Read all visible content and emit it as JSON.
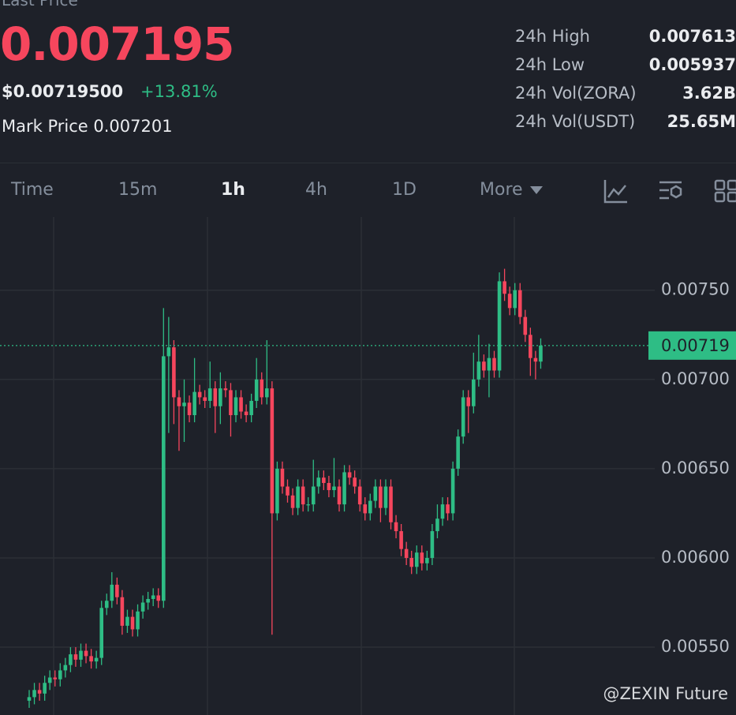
{
  "header": {
    "label": "Last Price",
    "price": "0.007195",
    "usd_price": "$0.00719500",
    "change": "+13.81%",
    "mark_label": "Mark Price",
    "mark_price": "0.007201"
  },
  "stats": [
    {
      "label": "24h High",
      "value": "0.007613"
    },
    {
      "label": "24h Low",
      "value": "0.005937"
    },
    {
      "label": "24h Vol(ZORA)",
      "value": "3.62B"
    },
    {
      "label": "24h Vol(USDT)",
      "value": "25.65M"
    }
  ],
  "tabs": [
    "Time",
    "15m",
    "1h",
    "4h",
    "1D",
    "More"
  ],
  "active_tab": "1h",
  "watermark": "@ZEXIN Future",
  "chart_data": {
    "type": "candlestick",
    "up_color": "#2ebd85",
    "down_color": "#f6465d",
    "ylim": [
      0.00512,
      0.00791
    ],
    "yticks": [
      {
        "value": 0.0055,
        "label": "0.00550"
      },
      {
        "value": 0.006,
        "label": "0.00600"
      },
      {
        "value": 0.0065,
        "label": "0.00650"
      },
      {
        "value": 0.007,
        "label": "0.00700"
      },
      {
        "value": 0.0075,
        "label": "0.00750"
      }
    ],
    "grid": true,
    "current_price": {
      "value": 0.00719,
      "label": "0.00719"
    },
    "open": [
      0.0052,
      0.00522,
      0.00526,
      0.00524,
      0.0053,
      0.00533,
      0.00532,
      0.00537,
      0.0054,
      0.00546,
      0.00543,
      0.00548,
      0.00545,
      0.00542,
      0.00544,
      0.00572,
      0.00576,
      0.00585,
      0.00578,
      0.00562,
      0.00567,
      0.0056,
      0.0057,
      0.00575,
      0.00577,
      0.00579,
      0.00576,
      0.00713,
      0.00718,
      0.0069,
      0.00685,
      0.00687,
      0.0068,
      0.00693,
      0.0069,
      0.00688,
      0.00695,
      0.00685,
      0.00695,
      0.00694,
      0.0068,
      0.0069,
      0.00682,
      0.0068,
      0.00688,
      0.007,
      0.0069,
      0.00695,
      0.00625,
      0.0065,
      0.0064,
      0.00635,
      0.00628,
      0.0064,
      0.0063,
      0.0063,
      0.0064,
      0.00645,
      0.00642,
      0.00638,
      0.0064,
      0.0063,
      0.00648,
      0.00645,
      0.0064,
      0.0063,
      0.00625,
      0.00632,
      0.0064,
      0.00628,
      0.0064,
      0.0062,
      0.00615,
      0.00605,
      0.006,
      0.00595,
      0.00603,
      0.00597,
      0.006,
      0.00615,
      0.00622,
      0.0063,
      0.00625,
      0.0065,
      0.00668,
      0.0069,
      0.00685,
      0.007,
      0.0071,
      0.00705,
      0.00712,
      0.00705,
      0.00755,
      0.00748,
      0.0074,
      0.0075,
      0.00735,
      0.00725,
      0.00712,
      0.0071
    ],
    "high": [
      0.00526,
      0.0053,
      0.0053,
      0.00534,
      0.00537,
      0.00537,
      0.00541,
      0.00544,
      0.0055,
      0.0055,
      0.00552,
      0.00552,
      0.00549,
      0.00548,
      0.00576,
      0.0058,
      0.00592,
      0.00589,
      0.00582,
      0.00571,
      0.00571,
      0.00574,
      0.00579,
      0.00581,
      0.00583,
      0.00583,
      0.0074,
      0.00735,
      0.00722,
      0.00694,
      0.007,
      0.00691,
      0.00712,
      0.00697,
      0.00694,
      0.0071,
      0.00699,
      0.00704,
      0.00699,
      0.00698,
      0.00694,
      0.00694,
      0.00686,
      0.00692,
      0.00712,
      0.00704,
      0.00722,
      0.00699,
      0.00654,
      0.00654,
      0.00644,
      0.00639,
      0.00644,
      0.00644,
      0.00634,
      0.00655,
      0.00649,
      0.00649,
      0.00646,
      0.00656,
      0.00644,
      0.00652,
      0.00652,
      0.00649,
      0.00644,
      0.00634,
      0.00636,
      0.00644,
      0.00644,
      0.00644,
      0.00644,
      0.00624,
      0.00619,
      0.00609,
      0.00604,
      0.00607,
      0.00607,
      0.00604,
      0.00619,
      0.0063,
      0.00634,
      0.00634,
      0.00654,
      0.00672,
      0.00694,
      0.00694,
      0.00715,
      0.00725,
      0.00714,
      0.0072,
      0.00716,
      0.0076,
      0.00762,
      0.00752,
      0.00754,
      0.00754,
      0.00739,
      0.00729,
      0.00716,
      0.00723
    ],
    "low": [
      0.00516,
      0.00518,
      0.0052,
      0.0052,
      0.00526,
      0.00528,
      0.00528,
      0.00533,
      0.00536,
      0.00539,
      0.00539,
      0.00541,
      0.00538,
      0.00538,
      0.0054,
      0.00568,
      0.00572,
      0.00574,
      0.00557,
      0.00558,
      0.00556,
      0.00556,
      0.00566,
      0.00571,
      0.00573,
      0.00572,
      0.00572,
      0.0067,
      0.00675,
      0.0066,
      0.00665,
      0.00676,
      0.00676,
      0.00686,
      0.00684,
      0.00684,
      0.0067,
      0.00675,
      0.0069,
      0.00668,
      0.00676,
      0.00678,
      0.00676,
      0.00676,
      0.00684,
      0.00686,
      0.00686,
      0.00557,
      0.00621,
      0.00636,
      0.00631,
      0.00624,
      0.00624,
      0.00626,
      0.00626,
      0.00626,
      0.00636,
      0.00638,
      0.00634,
      0.00634,
      0.00626,
      0.00626,
      0.00641,
      0.00636,
      0.00626,
      0.00621,
      0.00621,
      0.00628,
      0.0062,
      0.00624,
      0.00616,
      0.00611,
      0.00601,
      0.00596,
      0.00591,
      0.00591,
      0.00593,
      0.00593,
      0.00596,
      0.00611,
      0.00618,
      0.00621,
      0.00621,
      0.00646,
      0.00664,
      0.0067,
      0.00681,
      0.00696,
      0.00701,
      0.0069,
      0.00701,
      0.00701,
      0.00744,
      0.00736,
      0.00736,
      0.00731,
      0.00721,
      0.00702,
      0.007,
      0.00706
    ],
    "close": [
      0.00522,
      0.00526,
      0.00524,
      0.0053,
      0.00533,
      0.00532,
      0.00537,
      0.0054,
      0.00546,
      0.00543,
      0.00548,
      0.00545,
      0.00542,
      0.00544,
      0.00572,
      0.00576,
      0.00585,
      0.00578,
      0.00562,
      0.00567,
      0.0056,
      0.0057,
      0.00575,
      0.00577,
      0.00579,
      0.00576,
      0.00713,
      0.00718,
      0.0069,
      0.00685,
      0.00687,
      0.0068,
      0.00693,
      0.0069,
      0.00688,
      0.00695,
      0.00685,
      0.00695,
      0.00694,
      0.0068,
      0.0069,
      0.00682,
      0.0068,
      0.00688,
      0.007,
      0.0069,
      0.00695,
      0.00625,
      0.0065,
      0.0064,
      0.00635,
      0.00628,
      0.0064,
      0.0063,
      0.0063,
      0.0064,
      0.00645,
      0.00642,
      0.00638,
      0.0064,
      0.0063,
      0.00648,
      0.00645,
      0.0064,
      0.0063,
      0.00625,
      0.00632,
      0.0064,
      0.00628,
      0.0064,
      0.0062,
      0.00615,
      0.00605,
      0.006,
      0.00595,
      0.00603,
      0.00597,
      0.006,
      0.00615,
      0.00622,
      0.0063,
      0.00625,
      0.0065,
      0.00668,
      0.0069,
      0.00685,
      0.007,
      0.0071,
      0.00705,
      0.00712,
      0.00705,
      0.00755,
      0.00748,
      0.0074,
      0.0075,
      0.00735,
      0.00725,
      0.00712,
      0.0071,
      0.00719
    ]
  }
}
